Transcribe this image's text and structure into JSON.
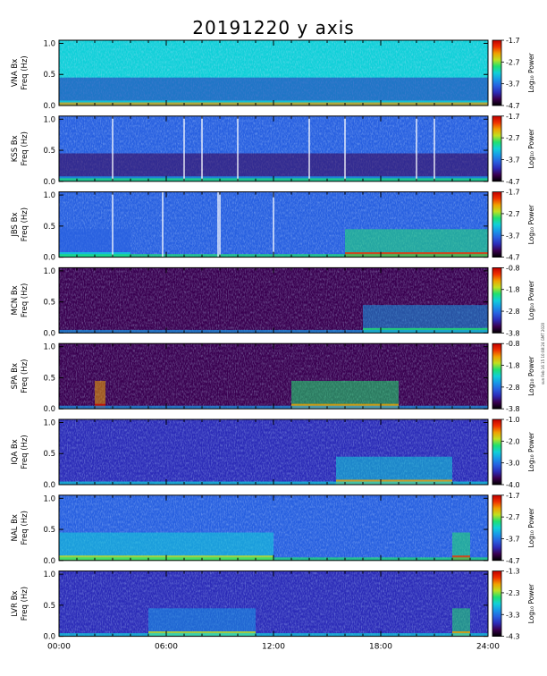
{
  "title": "20191220 y axis",
  "side_note": "sun Feb 16 15 10:08:24 GMT 2020",
  "chart_data": {
    "type": "heatmap",
    "time_axis": {
      "ticks": [
        "00:00",
        "06:00",
        "12:00",
        "18:00",
        "24:00"
      ],
      "range_hours": [
        0,
        24
      ]
    },
    "y_tick_labels": [
      "0.0",
      "0.5",
      "1.0"
    ],
    "ylim": [
      0,
      1.05
    ],
    "colorbar_label": "Log₁₀ Power",
    "colors": {
      "colorscale": [
        "#000000",
        "#3a0050",
        "#2c2cb8",
        "#2860e0",
        "#1898e8",
        "#10d0d8",
        "#20e070",
        "#c0e020",
        "#f0a000",
        "#f03000",
        "#c00000"
      ],
      "axis": "#000000",
      "gap": "#ffffff"
    },
    "panels": [
      {
        "name": "VNA",
        "ylabel": "VNA Bx",
        "ylabel2": "Freq (Hz)",
        "cbar_ticks": [
          "-1.7",
          "-2.7",
          "-3.7",
          "-4.7"
        ],
        "background_level": 0.45,
        "activity": [
          [
            0,
            24,
            0.2
          ]
        ],
        "gaps_hours": []
      },
      {
        "name": "KSS",
        "ylabel": "KSS Bx",
        "ylabel2": "Freq (Hz)",
        "cbar_ticks": [
          "-1.7",
          "-2.7",
          "-3.7",
          "-4.7"
        ],
        "background_level": 0.25,
        "activity": [
          [
            0,
            24,
            0.1
          ]
        ],
        "gaps_hours": [
          3.0,
          7.0,
          8.0,
          10.0,
          14.0,
          16.0,
          20.0,
          21.0
        ]
      },
      {
        "name": "JBS",
        "ylabel": "JBS Bx",
        "ylabel2": "Freq (Hz)",
        "cbar_ticks": [
          "-1.7",
          "-2.7",
          "-3.7",
          "-4.7"
        ],
        "background_level": 0.25,
        "activity": [
          [
            16,
            24,
            0.6
          ],
          [
            0,
            4,
            0.25
          ]
        ],
        "gaps_hours": [
          3.0,
          5.8,
          8.9,
          9.0,
          12.0
        ]
      },
      {
        "name": "MCN",
        "ylabel": "MCN Bx",
        "ylabel2": "Freq (Hz)",
        "cbar_ticks": [
          "-0.8",
          "-1.8",
          "-2.8",
          "-3.8"
        ],
        "background_level": 0.05,
        "activity": [
          [
            17,
            24,
            0.35
          ]
        ],
        "gaps_hours": []
      },
      {
        "name": "SPA",
        "ylabel": "SPA Bx",
        "ylabel2": "Freq (Hz)",
        "cbar_ticks": [
          "-0.8",
          "-1.8",
          "-2.8",
          "-3.8"
        ],
        "background_level": 0.05,
        "activity": [
          [
            13,
            19,
            0.55
          ],
          [
            2,
            2.6,
            0.8
          ]
        ],
        "gaps_hours": []
      },
      {
        "name": "IQA",
        "ylabel": "IQA Bx",
        "ylabel2": "Freq (Hz)",
        "cbar_ticks": [
          "-1.0",
          "-2.0",
          "-3.0",
          "-4.0"
        ],
        "background_level": 0.2,
        "activity": [
          [
            15.5,
            22,
            0.5
          ]
        ],
        "gaps_hours": []
      },
      {
        "name": "NAL",
        "ylabel": "NAL Bx",
        "ylabel2": "Freq (Hz)",
        "cbar_ticks": [
          "-1.7",
          "-2.7",
          "-3.7",
          "-4.7"
        ],
        "background_level": 0.3,
        "activity": [
          [
            0,
            12,
            0.45
          ],
          [
            22,
            23,
            0.6
          ]
        ],
        "gaps_hours": []
      },
      {
        "name": "LVR",
        "ylabel": "LVR Bx",
        "ylabel2": "Freq (Hz)",
        "cbar_ticks": [
          "-1.3",
          "-2.3",
          "-3.3",
          "-4.3"
        ],
        "background_level": 0.22,
        "activity": [
          [
            5,
            11,
            0.4
          ],
          [
            22,
            23,
            0.55
          ]
        ],
        "gaps_hours": []
      }
    ]
  }
}
